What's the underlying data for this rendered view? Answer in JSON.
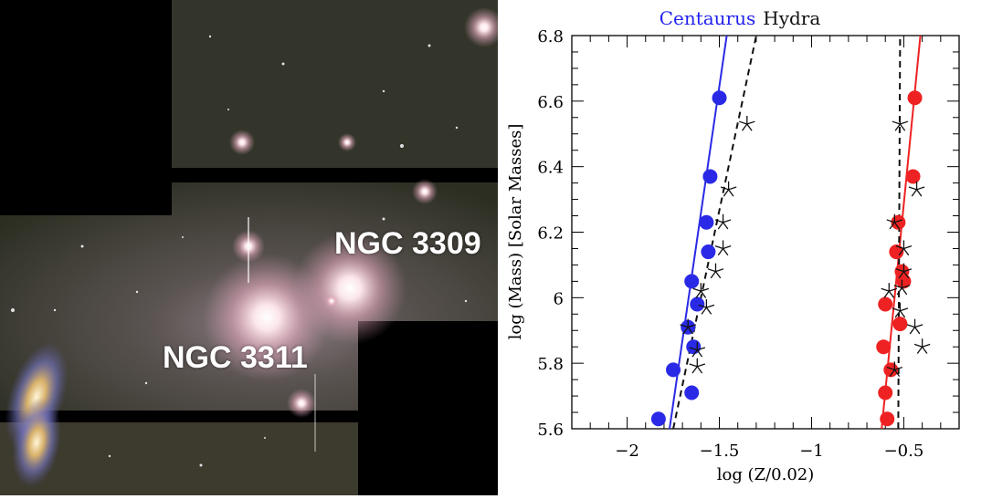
{
  "photo": {
    "labels": [
      "NGC 3309",
      "NGC 3311"
    ],
    "colors": {
      "background": "#000000",
      "sky": "#3a3c2c",
      "glow": "#f4d6dc"
    }
  },
  "chart_data": {
    "type": "scatter",
    "title_parts": [
      {
        "text": "Centaurus",
        "color": "#2222ee"
      },
      {
        "text": "Hydra",
        "color": "#111111"
      }
    ],
    "xlabel": "log (Z/0.02)",
    "ylabel": "log (Mass) [Solar Masses]",
    "xlim": [
      -2.3,
      -0.2
    ],
    "ylim": [
      5.6,
      6.8
    ],
    "xticks": [
      -2,
      -1.5,
      -1,
      -0.5
    ],
    "xtick_labels": [
      "−2",
      "−1.5",
      "−1",
      "−0.5"
    ],
    "yticks": [
      5.6,
      5.8,
      6,
      6.2,
      6.4,
      6.6,
      6.8
    ],
    "ytick_labels": [
      "5.6",
      "5.8",
      "6",
      "6.2",
      "6.4",
      "6.6",
      "6.8"
    ],
    "grid": false,
    "series": [
      {
        "marker": "circle",
        "color": "#2a2ae6",
        "points": [
          [
            -1.5,
            6.61
          ],
          [
            -1.55,
            6.37
          ],
          [
            -1.57,
            6.23
          ],
          [
            -1.56,
            6.14
          ],
          [
            -1.65,
            6.05
          ],
          [
            -1.62,
            5.98
          ],
          [
            -1.67,
            5.91
          ],
          [
            -1.64,
            5.85
          ],
          [
            -1.75,
            5.78
          ],
          [
            -1.65,
            5.71
          ],
          [
            -1.83,
            5.63
          ]
        ]
      },
      {
        "marker": "circle",
        "color": "#ee2222",
        "points": [
          [
            -0.44,
            6.61
          ],
          [
            -0.45,
            6.37
          ],
          [
            -0.53,
            6.23
          ],
          [
            -0.54,
            6.14
          ],
          [
            -0.51,
            6.08
          ],
          [
            -0.5,
            6.05
          ],
          [
            -0.6,
            5.98
          ],
          [
            -0.52,
            5.92
          ],
          [
            -0.61,
            5.85
          ],
          [
            -0.57,
            5.78
          ],
          [
            -0.6,
            5.71
          ],
          [
            -0.59,
            5.63
          ]
        ]
      },
      {
        "marker": "star",
        "color": "#111111",
        "points": [
          [
            -1.35,
            6.53
          ],
          [
            -1.45,
            6.33
          ],
          [
            -1.48,
            6.23
          ],
          [
            -1.48,
            6.15
          ],
          [
            -1.52,
            6.08
          ],
          [
            -1.6,
            6.02
          ],
          [
            -1.57,
            5.97
          ],
          [
            -1.67,
            5.91
          ],
          [
            -1.62,
            5.84
          ],
          [
            -1.62,
            5.79
          ]
        ]
      },
      {
        "marker": "star",
        "color": "#111111",
        "points": [
          [
            -0.52,
            6.53
          ],
          [
            -0.43,
            6.33
          ],
          [
            -0.55,
            6.23
          ],
          [
            -0.5,
            6.15
          ],
          [
            -0.5,
            6.08
          ],
          [
            -0.51,
            6.03
          ],
          [
            -0.58,
            6.02
          ],
          [
            -0.52,
            5.96
          ],
          [
            -0.44,
            5.91
          ],
          [
            -0.4,
            5.85
          ],
          [
            -0.55,
            5.78
          ]
        ]
      }
    ],
    "fit_lines": [
      {
        "color": "#2a2ae6",
        "style": "solid",
        "points": [
          [
            -1.77,
            5.6
          ],
          [
            -1.46,
            6.8
          ]
        ]
      },
      {
        "color": "#ee2222",
        "style": "solid",
        "points": [
          [
            -0.62,
            5.6
          ],
          [
            -0.41,
            6.8
          ]
        ]
      },
      {
        "color": "#111111",
        "style": "dashed",
        "points": [
          [
            -1.75,
            5.6
          ],
          [
            -1.3,
            6.8
          ]
        ]
      },
      {
        "color": "#111111",
        "style": "dashed",
        "points": [
          [
            -0.53,
            5.6
          ],
          [
            -0.52,
            6.8
          ]
        ]
      }
    ]
  }
}
